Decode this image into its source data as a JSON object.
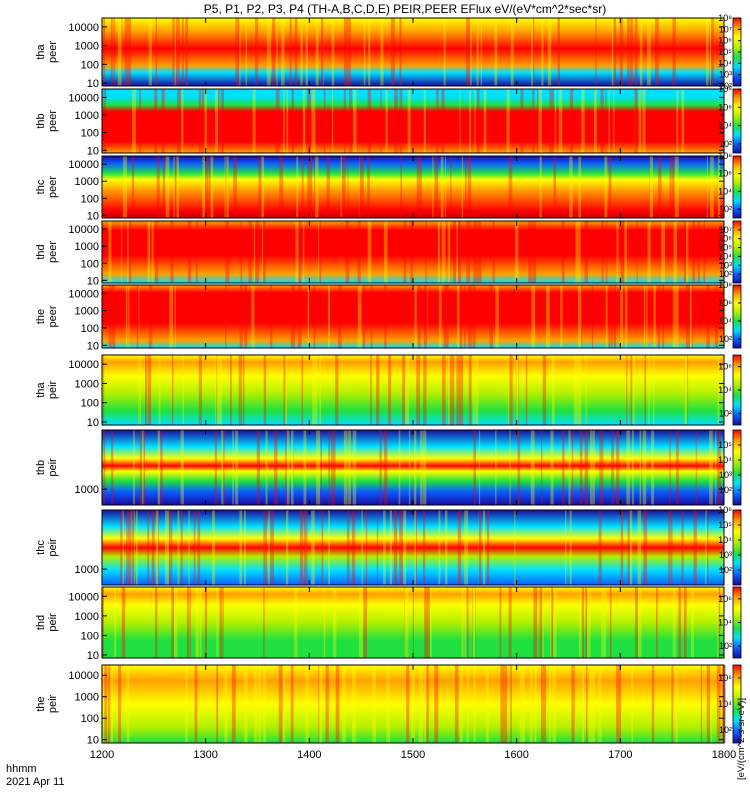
{
  "title": "P5, P1, P2, P3, P4 (TH-A,B,C,D,E) PEIR,PEER EFlux eV/(eV*cm^2*sec*sr)",
  "footer": {
    "time_label": "hhmm",
    "date_label": "2021 Apr 11"
  },
  "colorbar_unit": "[eV/(cm^2-s-sr-eV)]",
  "colors": {
    "ramp": [
      "#000000",
      "#1a0aa0",
      "#0a60ff",
      "#00e0ff",
      "#20e040",
      "#b0f000",
      "#ffff00",
      "#ffa000",
      "#ff0000",
      "#c80000"
    ]
  },
  "chart_data": {
    "type": "heatmap",
    "x_axis": {
      "range": [
        1200,
        1800
      ],
      "ticks": [
        "1200",
        "1300",
        "1400",
        "1500",
        "1600",
        "1700",
        "1800"
      ],
      "label": "hhmm"
    },
    "panels": [
      {
        "name": "tha peer",
        "ylabel": [
          "tha",
          "peer"
        ],
        "y_ticks": [
          "10000",
          "1000",
          "100",
          "10"
        ],
        "y_range": [
          7,
          30000
        ],
        "y_scale": "log",
        "cb_ticks": [
          "10^8",
          "10^7",
          "10^6",
          "10^5",
          "10^4",
          "10^3",
          "10^2"
        ],
        "cb_range": [
          2,
          8
        ]
      },
      {
        "name": "thb peer",
        "ylabel": [
          "thb",
          "peer"
        ],
        "y_ticks": [
          "10000",
          "1000",
          "100",
          "10"
        ],
        "y_range": [
          7,
          30000
        ],
        "y_scale": "log",
        "cb_ticks": [
          "10^8",
          "10^6",
          "10^4",
          "10^2"
        ],
        "cb_range": [
          1,
          8
        ]
      },
      {
        "name": "thc peer",
        "ylabel": [
          "thc",
          "peer"
        ],
        "y_ticks": [
          "10000",
          "1000",
          "100",
          "10"
        ],
        "y_range": [
          7,
          30000
        ],
        "y_scale": "log",
        "cb_ticks": [
          "10^8",
          "10^6",
          "10^4",
          "10^2"
        ],
        "cb_range": [
          1,
          8
        ]
      },
      {
        "name": "thd peer",
        "ylabel": [
          "thd",
          "peer"
        ],
        "y_ticks": [
          "10000",
          "1000",
          "100",
          "10"
        ],
        "y_range": [
          7,
          30000
        ],
        "y_scale": "log",
        "cb_ticks": [
          "10^7",
          "10^6",
          "10^5",
          "10^4",
          "10^3",
          "10^2"
        ],
        "cb_range": [
          1,
          8
        ]
      },
      {
        "name": "the peer",
        "ylabel": [
          "the",
          "peer"
        ],
        "y_ticks": [
          "10000",
          "1000",
          "100",
          "10"
        ],
        "y_range": [
          7,
          30000
        ],
        "y_scale": "log",
        "cb_ticks": [
          "10^8",
          "10^6",
          "10^4",
          "10^2"
        ],
        "cb_range": [
          1,
          8
        ]
      },
      {
        "name": "tha peir",
        "ylabel": [
          "tha",
          "peir"
        ],
        "y_ticks": [
          "10000",
          "1000",
          "100",
          "10"
        ],
        "y_range": [
          7,
          30000
        ],
        "y_scale": "log",
        "cb_ticks": [
          "10^6",
          "10^4",
          "10^2"
        ],
        "cb_range": [
          1,
          7
        ]
      },
      {
        "name": "thb peir",
        "ylabel": [
          "thb",
          "peir"
        ],
        "y_ticks": [
          "1000"
        ],
        "y_range": [
          400,
          30000
        ],
        "y_scale": "log",
        "cb_ticks": [
          "10^5",
          "10^4",
          "10^3",
          "10^2"
        ],
        "cb_range": [
          1,
          6
        ]
      },
      {
        "name": "thc peir",
        "ylabel": [
          "thc",
          "peir"
        ],
        "y_ticks": [
          "1000"
        ],
        "y_range": [
          400,
          30000
        ],
        "y_scale": "log",
        "cb_ticks": [
          "10^6",
          "10^5",
          "10^4",
          "10^3",
          "10^2"
        ],
        "cb_range": [
          1,
          6
        ]
      },
      {
        "name": "thd peir",
        "ylabel": [
          "thd",
          "peir"
        ],
        "y_ticks": [
          "10000",
          "1000",
          "100",
          "10"
        ],
        "y_range": [
          7,
          30000
        ],
        "y_scale": "log",
        "cb_ticks": [
          "10^6",
          "10^4",
          "10^2"
        ],
        "cb_range": [
          1,
          7
        ]
      },
      {
        "name": "the peir",
        "ylabel": [
          "the",
          "peir"
        ],
        "y_ticks": [
          "10000",
          "1000",
          "100",
          "10"
        ],
        "y_range": [
          7,
          30000
        ],
        "y_scale": "log",
        "cb_ticks": [
          "10^6",
          "10^4",
          "10^2"
        ],
        "cb_range": [
          1,
          7
        ]
      }
    ]
  }
}
